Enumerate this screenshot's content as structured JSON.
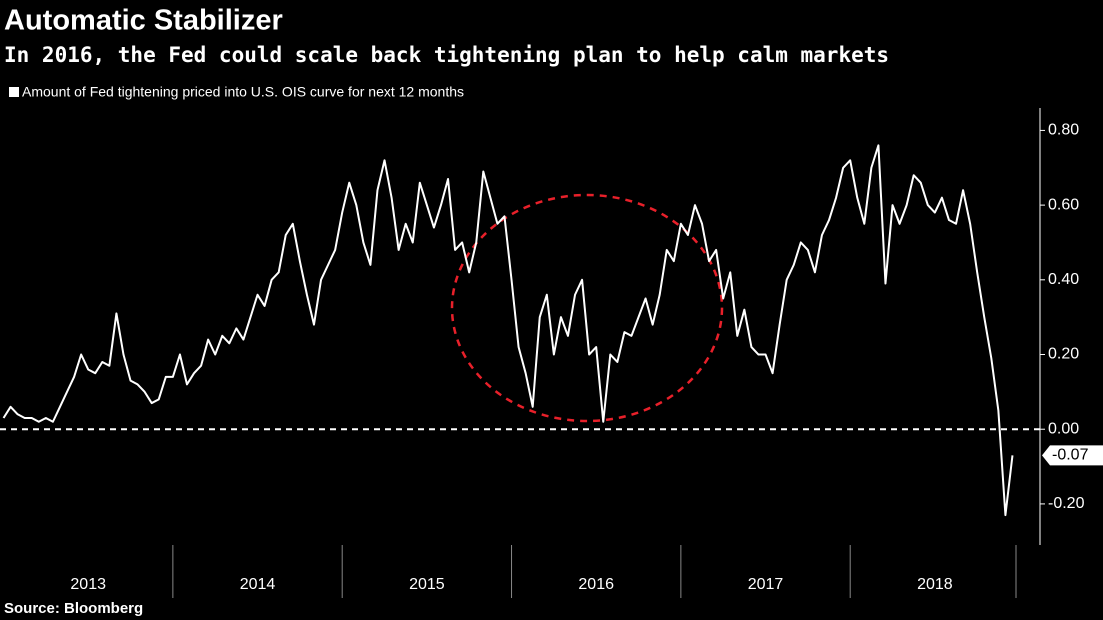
{
  "chart_data": {
    "type": "line",
    "title": "Automatic Stabilizer",
    "subtitle": "In 2016, the Fed could scale back tightening plan to help calm markets",
    "source": "Source: Bloomberg",
    "categories": [
      null,
      null,
      null,
      null,
      null,
      null,
      null,
      null,
      null,
      null,
      null,
      null,
      "2013",
      null,
      null,
      null,
      null,
      null,
      null,
      null,
      null,
      null,
      null,
      null,
      null,
      null,
      null,
      null,
      null,
      null,
      null,
      null,
      null,
      null,
      null,
      null,
      "2014",
      null,
      null,
      null,
      null,
      null,
      null,
      null,
      null,
      null,
      null,
      null,
      null,
      null,
      null,
      null,
      null,
      null,
      null,
      null,
      null,
      null,
      null,
      null,
      "2015",
      null,
      null,
      null,
      null,
      null,
      null,
      null,
      null,
      null,
      null,
      null,
      null,
      null,
      null,
      null,
      null,
      null,
      null,
      null,
      null,
      null,
      null,
      null,
      "2016",
      null,
      null,
      null,
      null,
      null,
      null,
      null,
      null,
      null,
      null,
      null,
      null,
      null,
      null,
      null,
      null,
      null,
      null,
      null,
      null,
      null,
      null,
      null,
      "2017",
      null,
      null,
      null,
      null,
      null,
      null,
      null,
      null,
      null,
      null,
      null,
      null,
      null,
      null,
      null,
      null,
      null,
      null,
      null,
      null,
      null,
      null,
      null,
      "2018",
      null,
      null,
      null,
      null,
      null,
      null,
      null,
      null,
      null,
      null,
      null
    ],
    "series": [
      {
        "name": "Amount of Fed tightening priced into U.S. OIS curve for next 12 months",
        "color": "#ffffff",
        "values": [
          0.03,
          0.06,
          0.04,
          0.03,
          0.03,
          0.02,
          0.03,
          0.02,
          0.06,
          0.1,
          0.14,
          0.2,
          0.16,
          0.15,
          0.18,
          0.17,
          0.31,
          0.2,
          0.13,
          0.12,
          0.1,
          0.07,
          0.08,
          0.14,
          0.14,
          0.2,
          0.12,
          0.15,
          0.17,
          0.24,
          0.2,
          0.25,
          0.23,
          0.27,
          0.24,
          0.3,
          0.36,
          0.33,
          0.4,
          0.42,
          0.52,
          0.55,
          0.45,
          0.36,
          0.28,
          0.4,
          0.44,
          0.48,
          0.58,
          0.66,
          0.6,
          0.5,
          0.44,
          0.64,
          0.72,
          0.62,
          0.48,
          0.55,
          0.5,
          0.66,
          0.6,
          0.54,
          0.6,
          0.67,
          0.48,
          0.5,
          0.42,
          0.5,
          0.69,
          0.62,
          0.55,
          0.57,
          0.4,
          0.22,
          0.15,
          0.06,
          0.3,
          0.36,
          0.2,
          0.3,
          0.25,
          0.36,
          0.4,
          0.2,
          0.22,
          0.02,
          0.2,
          0.18,
          0.26,
          0.25,
          0.3,
          0.35,
          0.28,
          0.36,
          0.48,
          0.45,
          0.55,
          0.52,
          0.6,
          0.55,
          0.45,
          0.48,
          0.35,
          0.42,
          0.25,
          0.32,
          0.22,
          0.2,
          0.2,
          0.15,
          0.28,
          0.4,
          0.44,
          0.5,
          0.48,
          0.42,
          0.52,
          0.56,
          0.62,
          0.7,
          0.72,
          0.62,
          0.55,
          0.7,
          0.76,
          0.39,
          0.6,
          0.55,
          0.6,
          0.68,
          0.66,
          0.6,
          0.58,
          0.62,
          0.56,
          0.55,
          0.64,
          0.55,
          0.42,
          0.3,
          0.19,
          0.05,
          -0.23,
          -0.07
        ]
      }
    ],
    "ylim": [
      -0.31,
      0.86
    ],
    "yticks": [
      {
        "value": -0.2,
        "label": "-0.20"
      },
      {
        "value": 0,
        "label": "0.00"
      },
      {
        "value": 0.2,
        "label": "0.20"
      },
      {
        "value": 0.4,
        "label": "0.40"
      },
      {
        "value": 0.6,
        "label": "0.60"
      },
      {
        "value": 0.8,
        "label": "0.80"
      }
    ],
    "zero_line": true,
    "last_value_label": true
  }
}
